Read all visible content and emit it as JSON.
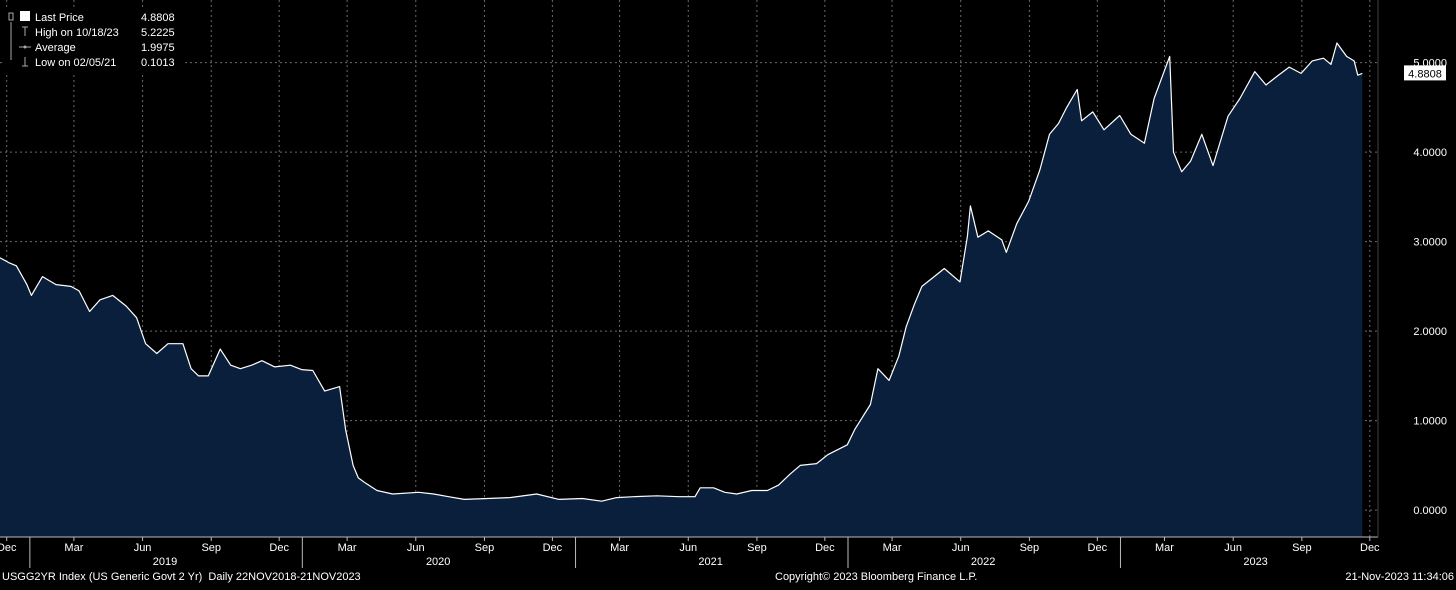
{
  "colors": {
    "background": "#000000",
    "area_fill": "#0a1f3c",
    "line": "#ffffff",
    "grid": "#6b6b6b",
    "text": "#ffffff",
    "price_box_bg": "#ffffff",
    "price_box_text": "#000000"
  },
  "legend": {
    "items": [
      {
        "label": "Last Price",
        "value": "4.8808",
        "icon": "filled-square-icon"
      },
      {
        "label": "High on 10/18/23",
        "value": "5.2225",
        "icon": "high-marker-icon"
      },
      {
        "label": "Average",
        "value": "1.9975",
        "icon": "average-line-icon"
      },
      {
        "label": "Low on 02/05/21",
        "value": "0.1013",
        "icon": "low-marker-icon"
      }
    ]
  },
  "last_price_box": "4.8808",
  "footer": {
    "left": "USGG2YR Index (US Generic Govt 2 Yr)  Daily 22NOV2018-21NOV2023",
    "center": "Copyright© 2023 Bloomberg Finance L.P.",
    "right": "21-Nov-2023 11:34:06"
  },
  "chart_data": {
    "type": "area",
    "ylim": [
      -0.3,
      5.7
    ],
    "y_ticks": [
      "0.0000",
      "1.0000",
      "2.0000",
      "3.0000",
      "4.0000",
      "5.0000"
    ],
    "y_tick_values": [
      0,
      1,
      2,
      3,
      4,
      5
    ],
    "x_range": [
      "2018-11-22",
      "2023-12-12"
    ],
    "x_month_ticks": [
      {
        "date": "2018-12-01",
        "label": "Dec"
      },
      {
        "date": "2019-03-01",
        "label": "Mar"
      },
      {
        "date": "2019-06-01",
        "label": "Jun"
      },
      {
        "date": "2019-09-01",
        "label": "Sep"
      },
      {
        "date": "2019-12-01",
        "label": "Dec"
      },
      {
        "date": "2020-03-01",
        "label": "Mar"
      },
      {
        "date": "2020-06-01",
        "label": "Jun"
      },
      {
        "date": "2020-09-01",
        "label": "Sep"
      },
      {
        "date": "2020-12-01",
        "label": "Dec"
      },
      {
        "date": "2021-03-01",
        "label": "Mar"
      },
      {
        "date": "2021-06-01",
        "label": "Jun"
      },
      {
        "date": "2021-09-01",
        "label": "Sep"
      },
      {
        "date": "2021-12-01",
        "label": "Dec"
      },
      {
        "date": "2022-03-01",
        "label": "Mar"
      },
      {
        "date": "2022-06-01",
        "label": "Jun"
      },
      {
        "date": "2022-09-01",
        "label": "Sep"
      },
      {
        "date": "2022-12-01",
        "label": "Dec"
      },
      {
        "date": "2023-03-01",
        "label": "Mar"
      },
      {
        "date": "2023-06-01",
        "label": "Jun"
      },
      {
        "date": "2023-09-01",
        "label": "Sep"
      },
      {
        "date": "2023-12-01",
        "label": "Dec"
      }
    ],
    "x_year_labels": [
      {
        "date": "2019-07-01",
        "label": "2019"
      },
      {
        "date": "2020-07-01",
        "label": "2020"
      },
      {
        "date": "2021-07-01",
        "label": "2021"
      },
      {
        "date": "2022-07-01",
        "label": "2022"
      },
      {
        "date": "2023-07-01",
        "label": "2023"
      }
    ],
    "x_year_separators": [
      "2019-01-01",
      "2020-01-01",
      "2021-01-01",
      "2022-01-01",
      "2023-01-01"
    ],
    "grid": true,
    "series": [
      {
        "name": "Last Price",
        "points": [
          [
            "2018-11-22",
            2.82
          ],
          [
            "2018-12-05",
            2.76
          ],
          [
            "2018-12-14",
            2.73
          ],
          [
            "2018-12-28",
            2.52
          ],
          [
            "2019-01-03",
            2.4
          ],
          [
            "2019-01-18",
            2.61
          ],
          [
            "2019-02-05",
            2.52
          ],
          [
            "2019-02-25",
            2.5
          ],
          [
            "2019-03-08",
            2.45
          ],
          [
            "2019-03-22",
            2.22
          ],
          [
            "2019-04-05",
            2.35
          ],
          [
            "2019-04-22",
            2.4
          ],
          [
            "2019-05-10",
            2.28
          ],
          [
            "2019-05-24",
            2.15
          ],
          [
            "2019-06-05",
            1.86
          ],
          [
            "2019-06-20",
            1.75
          ],
          [
            "2019-07-05",
            1.86
          ],
          [
            "2019-07-25",
            1.86
          ],
          [
            "2019-08-05",
            1.58
          ],
          [
            "2019-08-15",
            1.5
          ],
          [
            "2019-08-28",
            1.5
          ],
          [
            "2019-09-13",
            1.8
          ],
          [
            "2019-09-27",
            1.62
          ],
          [
            "2019-10-10",
            1.58
          ],
          [
            "2019-10-25",
            1.62
          ],
          [
            "2019-11-08",
            1.67
          ],
          [
            "2019-11-25",
            1.6
          ],
          [
            "2019-12-16",
            1.62
          ],
          [
            "2019-12-31",
            1.57
          ],
          [
            "2020-01-15",
            1.56
          ],
          [
            "2020-01-31",
            1.33
          ],
          [
            "2020-02-20",
            1.38
          ],
          [
            "2020-02-28",
            0.9
          ],
          [
            "2020-03-09",
            0.5
          ],
          [
            "2020-03-16",
            0.36
          ],
          [
            "2020-03-26",
            0.3
          ],
          [
            "2020-04-10",
            0.22
          ],
          [
            "2020-05-01",
            0.18
          ],
          [
            "2020-06-05",
            0.2
          ],
          [
            "2020-06-25",
            0.18
          ],
          [
            "2020-07-15",
            0.15
          ],
          [
            "2020-08-05",
            0.12
          ],
          [
            "2020-09-05",
            0.13
          ],
          [
            "2020-10-05",
            0.14
          ],
          [
            "2020-11-10",
            0.18
          ],
          [
            "2020-12-10",
            0.12
          ],
          [
            "2021-01-10",
            0.13
          ],
          [
            "2021-02-05",
            0.1
          ],
          [
            "2021-02-25",
            0.14
          ],
          [
            "2021-03-20",
            0.15
          ],
          [
            "2021-04-20",
            0.16
          ],
          [
            "2021-05-20",
            0.15
          ],
          [
            "2021-06-10",
            0.15
          ],
          [
            "2021-06-17",
            0.25
          ],
          [
            "2021-07-05",
            0.25
          ],
          [
            "2021-07-20",
            0.2
          ],
          [
            "2021-08-05",
            0.18
          ],
          [
            "2021-08-25",
            0.22
          ],
          [
            "2021-09-15",
            0.22
          ],
          [
            "2021-09-30",
            0.28
          ],
          [
            "2021-10-15",
            0.4
          ],
          [
            "2021-10-29",
            0.5
          ],
          [
            "2021-11-20",
            0.52
          ],
          [
            "2021-12-05",
            0.62
          ],
          [
            "2021-12-31",
            0.73
          ],
          [
            "2022-01-10",
            0.9
          ],
          [
            "2022-01-31",
            1.18
          ],
          [
            "2022-02-10",
            1.58
          ],
          [
            "2022-02-25",
            1.45
          ],
          [
            "2022-03-10",
            1.72
          ],
          [
            "2022-03-20",
            2.05
          ],
          [
            "2022-03-31",
            2.3
          ],
          [
            "2022-04-10",
            2.5
          ],
          [
            "2022-04-25",
            2.6
          ],
          [
            "2022-05-10",
            2.7
          ],
          [
            "2022-05-31",
            2.55
          ],
          [
            "2022-06-10",
            3.06
          ],
          [
            "2022-06-14",
            3.4
          ],
          [
            "2022-06-24",
            3.05
          ],
          [
            "2022-07-08",
            3.12
          ],
          [
            "2022-07-26",
            3.02
          ],
          [
            "2022-08-01",
            2.88
          ],
          [
            "2022-08-15",
            3.2
          ],
          [
            "2022-08-31",
            3.45
          ],
          [
            "2022-09-15",
            3.8
          ],
          [
            "2022-09-28",
            4.2
          ],
          [
            "2022-10-10",
            4.32
          ],
          [
            "2022-10-21",
            4.5
          ],
          [
            "2022-11-04",
            4.7
          ],
          [
            "2022-11-10",
            4.35
          ],
          [
            "2022-11-25",
            4.45
          ],
          [
            "2022-12-10",
            4.25
          ],
          [
            "2022-12-31",
            4.41
          ],
          [
            "2023-01-15",
            4.2
          ],
          [
            "2023-02-02",
            4.1
          ],
          [
            "2023-02-15",
            4.6
          ],
          [
            "2023-03-08",
            5.07
          ],
          [
            "2023-03-13",
            4.0
          ],
          [
            "2023-03-24",
            3.78
          ],
          [
            "2023-04-05",
            3.9
          ],
          [
            "2023-04-20",
            4.2
          ],
          [
            "2023-05-05",
            3.85
          ],
          [
            "2023-05-25",
            4.4
          ],
          [
            "2023-06-10",
            4.6
          ],
          [
            "2023-06-30",
            4.9
          ],
          [
            "2023-07-15",
            4.75
          ],
          [
            "2023-07-30",
            4.85
          ],
          [
            "2023-08-15",
            4.95
          ],
          [
            "2023-08-31",
            4.88
          ],
          [
            "2023-09-15",
            5.02
          ],
          [
            "2023-09-30",
            5.05
          ],
          [
            "2023-10-10",
            4.98
          ],
          [
            "2023-10-18",
            5.22
          ],
          [
            "2023-10-31",
            5.07
          ],
          [
            "2023-11-10",
            5.02
          ],
          [
            "2023-11-15",
            4.86
          ],
          [
            "2023-11-21",
            4.88
          ]
        ]
      }
    ]
  }
}
